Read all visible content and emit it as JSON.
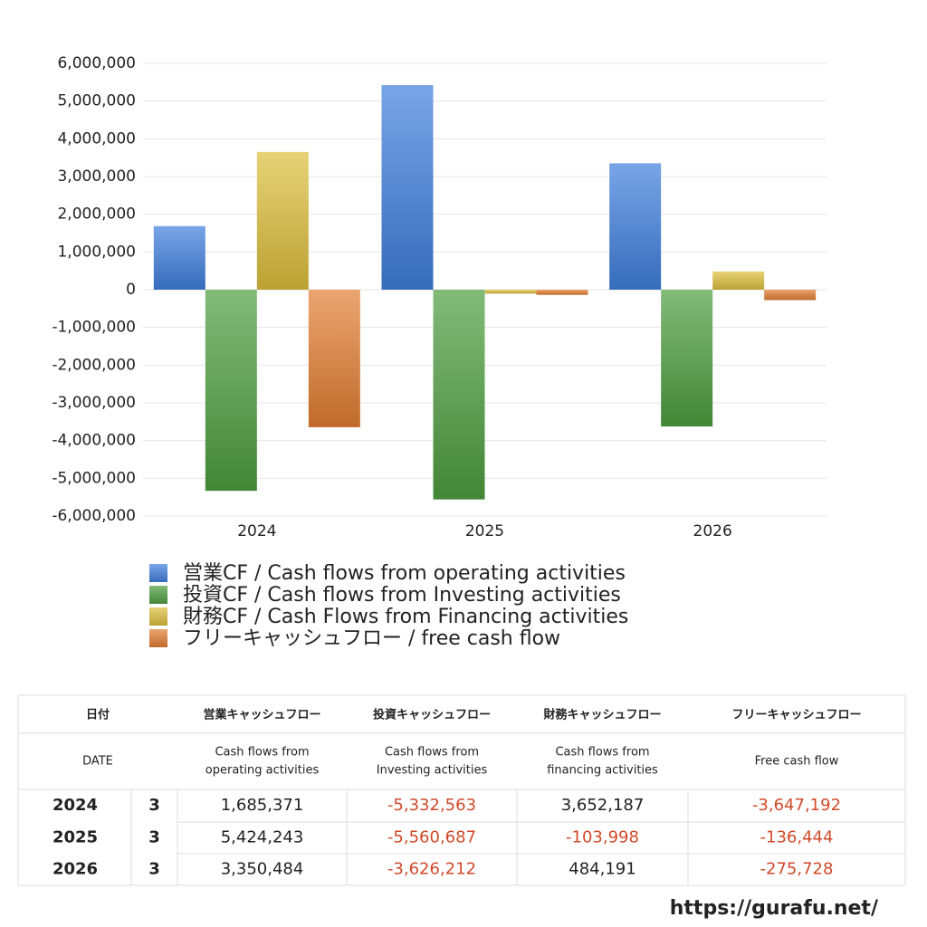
{
  "chart_data": {
    "type": "bar",
    "categories": [
      "2024",
      "2025",
      "2026"
    ],
    "series": [
      {
        "name": "営業CF / Cash flows from operating activities",
        "color": "#3f7fdc",
        "values": [
          1685371,
          5424243,
          3350484
        ]
      },
      {
        "name": "投資CF / Cash flows from Investing activities",
        "color": "#4e9e40",
        "values": [
          -5332563,
          -5560687,
          -3626212
        ]
      },
      {
        "name": "財務CF / Cash Flows from Financing activities",
        "color": "#dcbe3c",
        "values": [
          3652187,
          -103998,
          484191
        ]
      },
      {
        "name": "フリーキャッシュフロー / free cash flow",
        "color": "#e27e32",
        "values": [
          -3647192,
          -136444,
          -275728
        ]
      }
    ],
    "ylim": [
      -6000000,
      6000000
    ],
    "yticks": [
      {
        "value": -6000000,
        "label": "-6,000,000"
      },
      {
        "value": -5000000,
        "label": "-5,000,000"
      },
      {
        "value": -4000000,
        "label": "-4,000,000"
      },
      {
        "value": -3000000,
        "label": "-3,000,000"
      },
      {
        "value": -2000000,
        "label": "-2,000,000"
      },
      {
        "value": -1000000,
        "label": "-1,000,000"
      },
      0,
      {
        "value": 1000000,
        "label": "1,000,000"
      },
      {
        "value": 2000000,
        "label": "2,000,000"
      },
      {
        "value": 3000000,
        "label": "3,000,000"
      },
      {
        "value": 4000000,
        "label": "4,000,000"
      },
      {
        "value": 5000000,
        "label": "5,000,000"
      },
      {
        "value": 6000000,
        "label": "6,000,000"
      }
    ],
    "grid": true
  },
  "table": {
    "header_row1": [
      "日付",
      "営業キャッシュフロー",
      "投資キャッシュフロー",
      "財務キャッシュフロー",
      "フリーキャッシュフロー"
    ],
    "header_row2": [
      [
        "DATE"
      ],
      [
        "Cash flows from",
        "operating activities"
      ],
      [
        "Cash flows from",
        "Investing activities"
      ],
      [
        "Cash flows from",
        "financing activities"
      ],
      [
        "Free cash flow"
      ]
    ],
    "rows": [
      [
        "2024",
        "3",
        "1,685,371",
        "-5,332,563",
        "3,652,187",
        "-3,647,192"
      ],
      [
        "2025",
        "3",
        "5,424,243",
        "-5,560,687",
        "-103,998",
        "-136,444"
      ],
      [
        "2026",
        "3",
        "3,350,484",
        "-3,626,212",
        "484,191",
        "-275,728"
      ]
    ]
  },
  "footer": "https://gurafu.net/"
}
